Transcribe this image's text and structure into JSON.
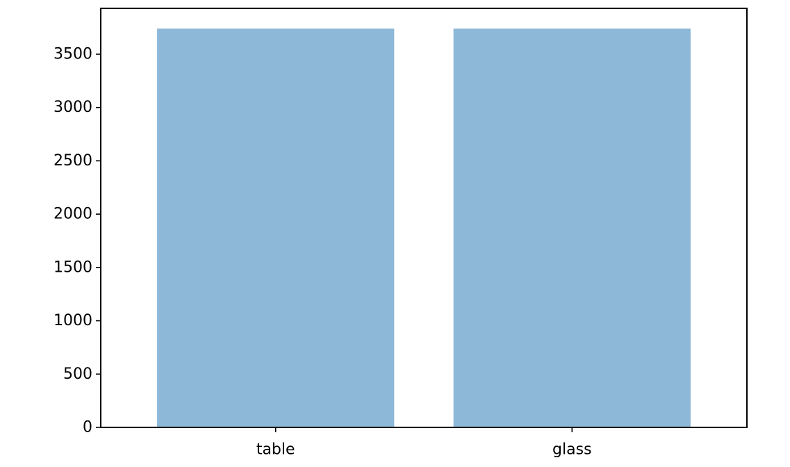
{
  "chart_data": {
    "type": "bar",
    "title": "",
    "xlabel": "",
    "ylabel": "",
    "categories": [
      "table",
      "glass"
    ],
    "values": [
      3740,
      3740
    ],
    "ylim": [
      0,
      3930
    ],
    "yticks": [
      0,
      500,
      1000,
      1500,
      2000,
      2500,
      3000,
      3500
    ],
    "ytick_labels": [
      "0",
      "500",
      "1000",
      "1500",
      "2000",
      "2500",
      "3000",
      "3500"
    ],
    "grid": false,
    "legend": null,
    "bar_color": "#8db8d8",
    "axis_color": "#000000",
    "background_color": "#ffffff"
  }
}
